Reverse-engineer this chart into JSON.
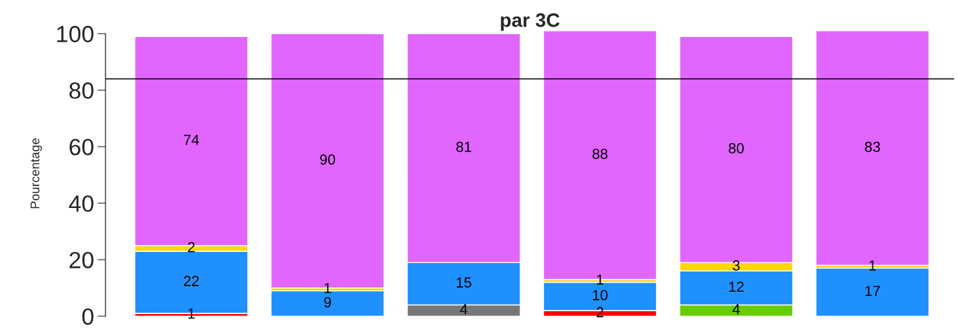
{
  "chart_data": {
    "type": "bar",
    "title": "par 3C",
    "ylabel": "Pourcentage",
    "categories": [
      null,
      null,
      null,
      null,
      null,
      null
    ],
    "stacked": true,
    "data_labels": true,
    "legend": false,
    "grid": false,
    "tick_labels": "y",
    "ylim": [
      0,
      101
    ],
    "yticks": [
      0,
      20,
      40,
      60,
      80,
      100
    ],
    "ref_lines": [
      {
        "axis": "y",
        "value": 84,
        "color": "#000000",
        "line_style": "solid"
      }
    ],
    "series": [
      {
        "color": "#ff0000",
        "values": [
          1,
          null,
          null,
          2,
          null,
          null
        ]
      },
      {
        "color": "#66cc00",
        "values": [
          null,
          null,
          null,
          null,
          4,
          null
        ]
      },
      {
        "color": "#777777",
        "values": [
          null,
          null,
          4,
          null,
          null,
          null
        ]
      },
      {
        "color": "#1e90ff",
        "values": [
          22,
          9,
          15,
          10,
          12,
          17
        ]
      },
      {
        "color": "#ffd700",
        "values": [
          2,
          1,
          null,
          1,
          3,
          1
        ]
      },
      {
        "color": "#e066ff",
        "values": [
          74,
          90,
          81,
          88,
          80,
          83
        ]
      }
    ]
  }
}
